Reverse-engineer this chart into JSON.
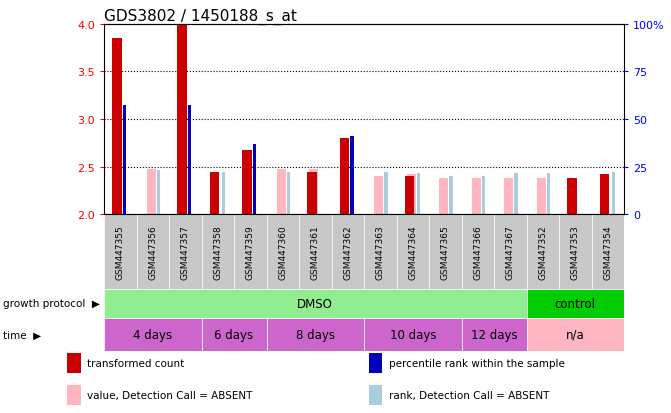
{
  "title": "GDS3802 / 1450188_s_at",
  "samples": [
    "GSM447355",
    "GSM447356",
    "GSM447357",
    "GSM447358",
    "GSM447359",
    "GSM447360",
    "GSM447361",
    "GSM447362",
    "GSM447363",
    "GSM447364",
    "GSM447365",
    "GSM447366",
    "GSM447367",
    "GSM447352",
    "GSM447353",
    "GSM447354"
  ],
  "red_values": [
    3.85,
    null,
    4.0,
    2.44,
    2.68,
    null,
    2.44,
    2.8,
    null,
    2.4,
    null,
    null,
    null,
    null,
    2.38,
    2.42
  ],
  "blue_values": [
    3.15,
    null,
    3.15,
    null,
    2.74,
    null,
    null,
    2.82,
    null,
    null,
    null,
    null,
    null,
    null,
    null,
    null
  ],
  "pink_values": [
    null,
    2.48,
    null,
    null,
    null,
    2.48,
    2.48,
    null,
    2.4,
    2.42,
    2.38,
    2.38,
    2.38,
    2.38,
    null,
    null
  ],
  "lightblue_values": [
    null,
    2.47,
    null,
    2.44,
    null,
    2.44,
    null,
    null,
    2.44,
    2.43,
    2.4,
    2.4,
    2.43,
    2.43,
    null,
    2.44
  ],
  "ylim": [
    2.0,
    4.0
  ],
  "yticks": [
    2.0,
    2.5,
    3.0,
    3.5,
    4.0
  ],
  "right_ytick_labels": [
    "0",
    "25",
    "50",
    "75",
    "100%"
  ],
  "right_ytick_vals": [
    0,
    25,
    50,
    75,
    100
  ],
  "groups": [
    {
      "label": "DMSO",
      "start": 0,
      "end": 13,
      "color": "#90EE90"
    },
    {
      "label": "control",
      "start": 13,
      "end": 16,
      "color": "#00CC00"
    }
  ],
  "time_groups": [
    {
      "label": "4 days",
      "start": 0,
      "end": 3,
      "color": "#CC66CC"
    },
    {
      "label": "6 days",
      "start": 3,
      "end": 5,
      "color": "#CC66CC"
    },
    {
      "label": "8 days",
      "start": 5,
      "end": 8,
      "color": "#CC66CC"
    },
    {
      "label": "10 days",
      "start": 8,
      "end": 11,
      "color": "#CC66CC"
    },
    {
      "label": "12 days",
      "start": 11,
      "end": 13,
      "color": "#CC66CC"
    },
    {
      "label": "n/a",
      "start": 13,
      "end": 16,
      "color": "#FFB6C1"
    }
  ],
  "red_color": "#CC0000",
  "blue_color": "#0000BB",
  "pink_color": "#FFB6C1",
  "lightblue_color": "#AACCDD",
  "bg_color": "#FFFFFF",
  "sample_bg": "#C8C8C8",
  "title_fontsize": 11,
  "legend_items": [
    {
      "color": "#CC0000",
      "label": "transformed count"
    },
    {
      "color": "#0000BB",
      "label": "percentile rank within the sample"
    },
    {
      "color": "#FFB6C1",
      "label": "value, Detection Call = ABSENT"
    },
    {
      "color": "#AACCDD",
      "label": "rank, Detection Call = ABSENT"
    }
  ]
}
